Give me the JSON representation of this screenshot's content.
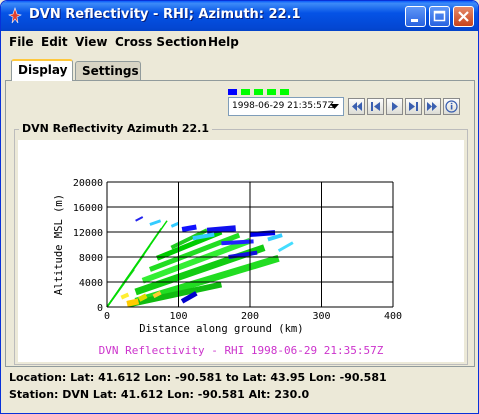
{
  "window": {
    "title": "DVN Reflectivity - RHI; Azimuth: 22.1",
    "icons": {
      "app": "radar-app-icon",
      "minimize": "minimize-icon",
      "maximize": "maximize-icon",
      "close": "close-icon"
    }
  },
  "menu": {
    "items": [
      "File",
      "Edit",
      "View",
      "Cross Section",
      "Help"
    ]
  },
  "tabs": [
    {
      "label": "Display",
      "active": true
    },
    {
      "label": "Settings",
      "active": false
    }
  ],
  "animation": {
    "timestep_colors": [
      "#0000ff",
      "#00ff00",
      "#00ff00",
      "#00ff00",
      "#00ff00"
    ],
    "current_time": "1998-06-29 21:35:57Z",
    "buttons": [
      "go-first-icon",
      "step-back-icon",
      "play-icon",
      "step-forward-icon",
      "go-last-icon",
      "info-icon"
    ]
  },
  "panel": {
    "title": "DVN Reflectivity Azimuth 22.1"
  },
  "chart_data": {
    "type": "heatmap",
    "title": "",
    "caption": "DVN Reflectivity - RHI 1998-06-29 21:35:57Z",
    "xlabel": "Distance along ground (km)",
    "ylabel": "Altitude MSL (m)",
    "xlim": [
      0,
      400
    ],
    "ylim": [
      0,
      20000
    ],
    "x_ticks": [
      0,
      100,
      200,
      300,
      400
    ],
    "y_ticks": [
      0,
      4000,
      8000,
      12000,
      16000,
      20000
    ],
    "y_tick_labels": [
      "0",
      "4000",
      "8000",
      "12000",
      "16000",
      "20000"
    ],
    "grid": true,
    "caption_color": "#cc33cc"
  },
  "status": {
    "location": "Location: Lat: 41.612 Lon: -90.581  to  Lat: 43.95 Lon: -90.581",
    "station": "Station: DVN Lat: 41.612 Lon: -90.581 Alt: 230.0"
  }
}
